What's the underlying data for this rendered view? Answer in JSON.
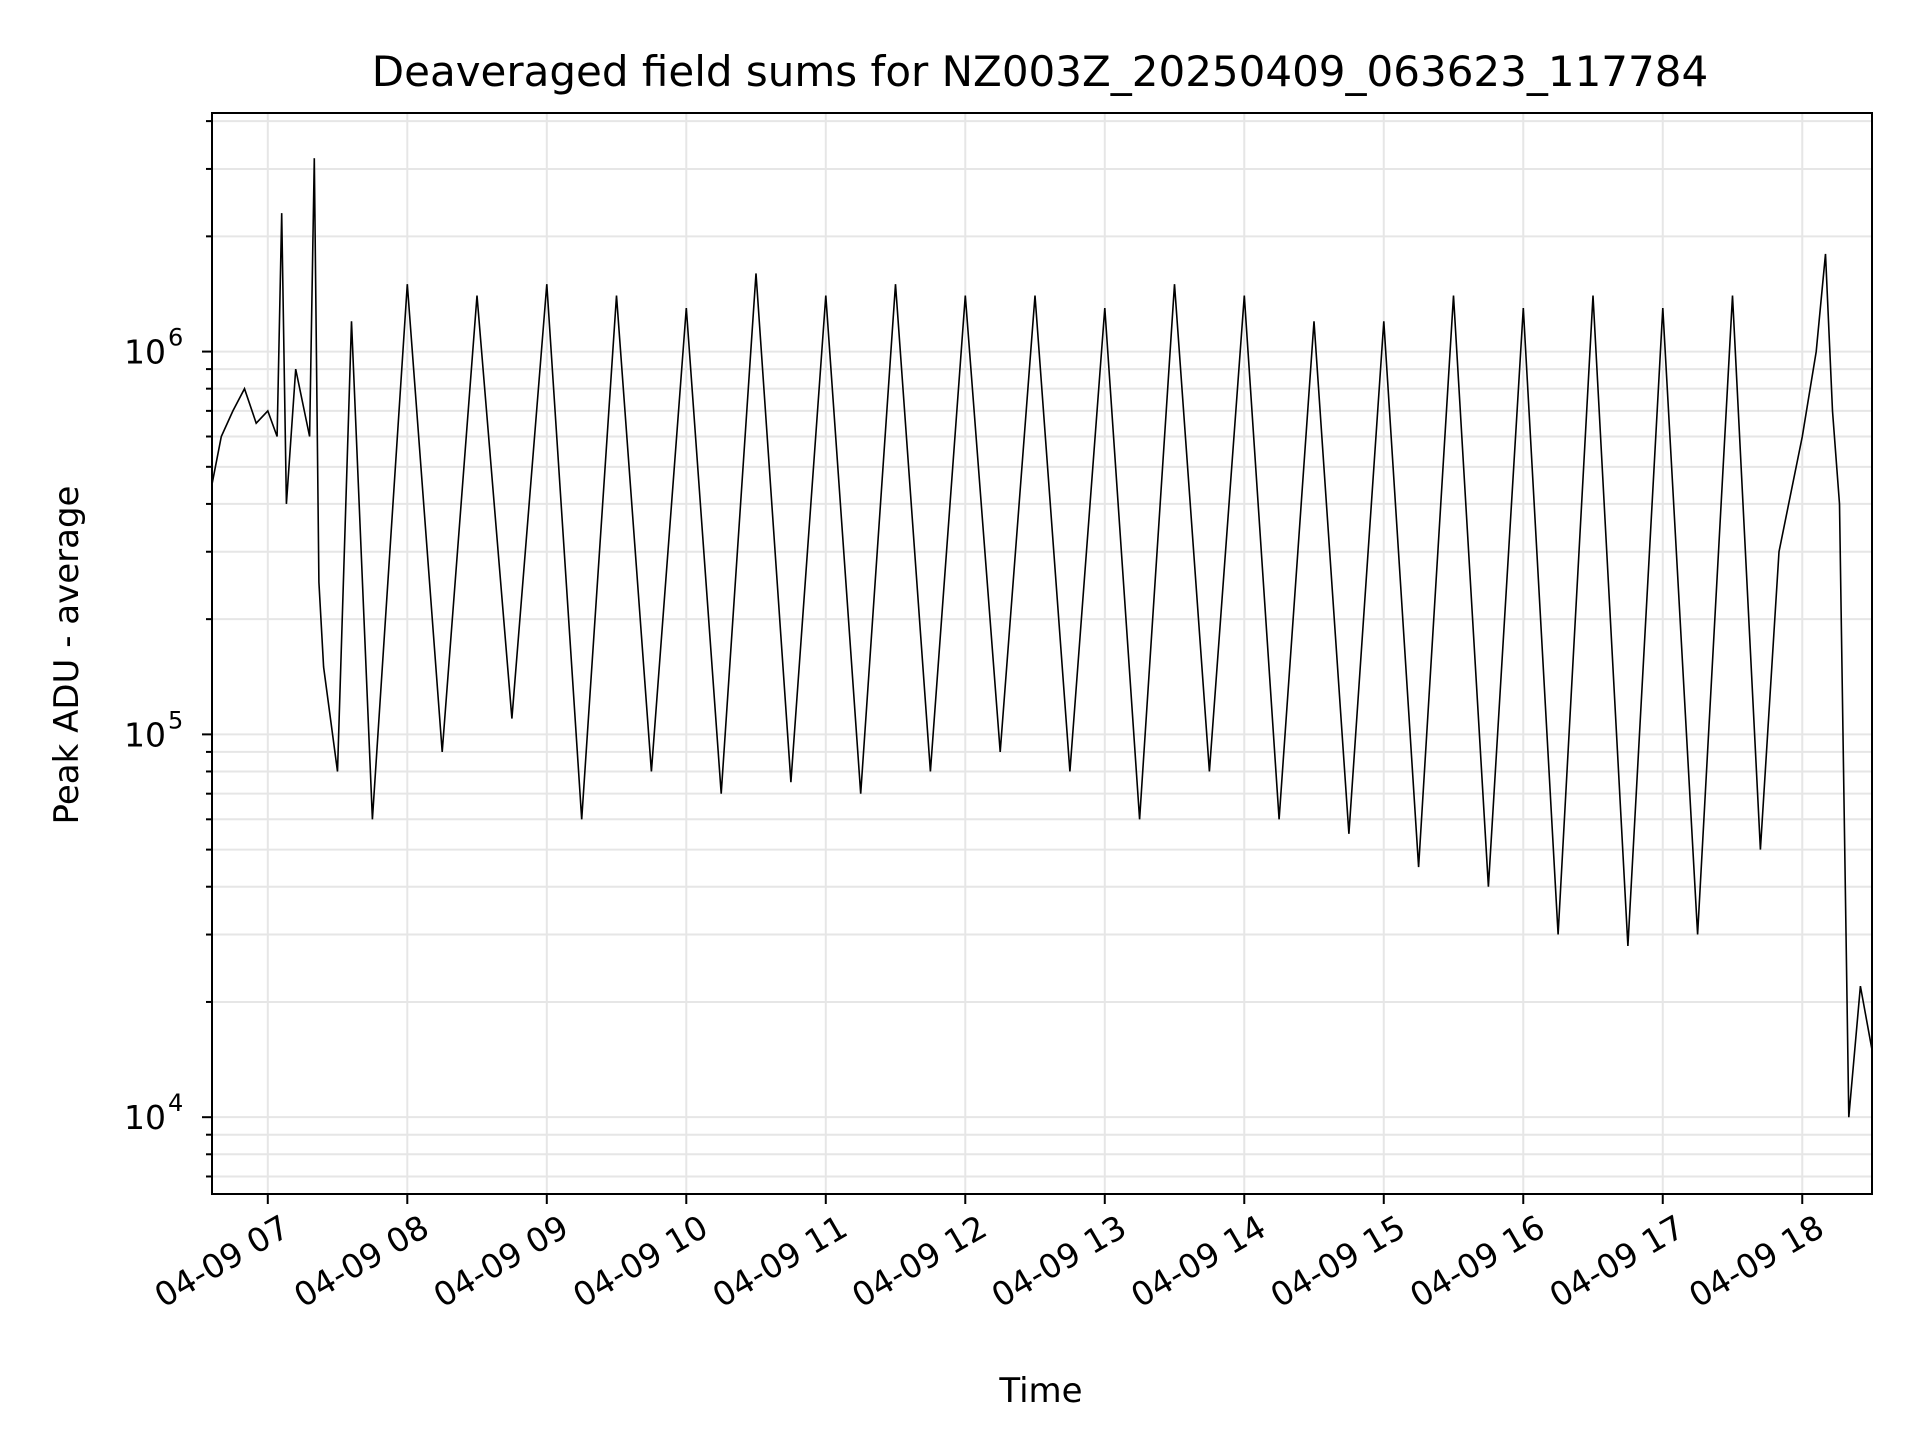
{
  "chart_data": {
    "type": "line",
    "title": "Deaveraged field sums for NZ003Z_20250409_063623_117784",
    "xlabel": "Time",
    "ylabel": "Peak ADU - average",
    "y_scale": "log",
    "ylim": [
      6300,
      4200000
    ],
    "xlim": [
      "2025-04-09 06:36",
      "2025-04-09 18:30"
    ],
    "grid": true,
    "line_color": "#000000",
    "x_ticks": [
      {
        "x": "2025-04-09 07:00",
        "label": "04-09 07"
      },
      {
        "x": "2025-04-09 08:00",
        "label": "04-09 08"
      },
      {
        "x": "2025-04-09 09:00",
        "label": "04-09 09"
      },
      {
        "x": "2025-04-09 10:00",
        "label": "04-09 10"
      },
      {
        "x": "2025-04-09 11:00",
        "label": "04-09 11"
      },
      {
        "x": "2025-04-09 12:00",
        "label": "04-09 12"
      },
      {
        "x": "2025-04-09 13:00",
        "label": "04-09 13"
      },
      {
        "x": "2025-04-09 14:00",
        "label": "04-09 14"
      },
      {
        "x": "2025-04-09 15:00",
        "label": "04-09 15"
      },
      {
        "x": "2025-04-09 16:00",
        "label": "04-09 16"
      },
      {
        "x": "2025-04-09 17:00",
        "label": "04-09 17"
      },
      {
        "x": "2025-04-09 18:00",
        "label": "04-09 18"
      }
    ],
    "y_ticks": [
      {
        "y": 10000,
        "base": "10",
        "exp": "4"
      },
      {
        "y": 100000,
        "base": "10",
        "exp": "5"
      },
      {
        "y": 1000000,
        "base": "10",
        "exp": "6"
      }
    ],
    "series": [
      {
        "x": [
          "2025-04-09 06:36",
          "2025-04-09 06:40",
          "2025-04-09 06:45",
          "2025-04-09 06:50",
          "2025-04-09 06:55",
          "2025-04-09 07:00",
          "2025-04-09 07:04",
          "2025-04-09 07:06",
          "2025-04-09 07:08",
          "2025-04-09 07:12",
          "2025-04-09 07:18",
          "2025-04-09 07:20",
          "2025-04-09 07:22",
          "2025-04-09 07:24",
          "2025-04-09 07:30",
          "2025-04-09 07:36",
          "2025-04-09 07:45",
          "2025-04-09 08:00",
          "2025-04-09 08:15",
          "2025-04-09 08:30",
          "2025-04-09 08:45",
          "2025-04-09 09:00",
          "2025-04-09 09:15",
          "2025-04-09 09:30",
          "2025-04-09 09:45",
          "2025-04-09 10:00",
          "2025-04-09 10:15",
          "2025-04-09 10:30",
          "2025-04-09 10:45",
          "2025-04-09 11:00",
          "2025-04-09 11:15",
          "2025-04-09 11:30",
          "2025-04-09 11:45",
          "2025-04-09 12:00",
          "2025-04-09 12:15",
          "2025-04-09 12:30",
          "2025-04-09 12:45",
          "2025-04-09 13:00",
          "2025-04-09 13:15",
          "2025-04-09 13:30",
          "2025-04-09 13:45",
          "2025-04-09 14:00",
          "2025-04-09 14:15",
          "2025-04-09 14:30",
          "2025-04-09 14:45",
          "2025-04-09 15:00",
          "2025-04-09 15:15",
          "2025-04-09 15:30",
          "2025-04-09 15:45",
          "2025-04-09 16:00",
          "2025-04-09 16:15",
          "2025-04-09 16:30",
          "2025-04-09 16:45",
          "2025-04-09 17:00",
          "2025-04-09 17:15",
          "2025-04-09 17:30",
          "2025-04-09 17:42",
          "2025-04-09 17:50",
          "2025-04-09 18:00",
          "2025-04-09 18:06",
          "2025-04-09 18:10",
          "2025-04-09 18:13",
          "2025-04-09 18:16",
          "2025-04-09 18:20",
          "2025-04-09 18:25",
          "2025-04-09 18:30"
        ],
        "y": [
          450000,
          600000,
          700000,
          800000,
          650000,
          700000,
          600000,
          2300000,
          400000,
          900000,
          600000,
          3200000,
          250000,
          150000,
          80000,
          1200000,
          60000,
          1500000,
          90000,
          1400000,
          110000,
          1500000,
          60000,
          1400000,
          80000,
          1300000,
          70000,
          1600000,
          75000,
          1400000,
          70000,
          1500000,
          80000,
          1400000,
          90000,
          1400000,
          80000,
          1300000,
          60000,
          1500000,
          80000,
          1400000,
          60000,
          1200000,
          55000,
          1200000,
          45000,
          1400000,
          40000,
          1300000,
          30000,
          1400000,
          28000,
          1300000,
          30000,
          1400000,
          50000,
          300000,
          600000,
          1000000,
          1800000,
          700000,
          400000,
          10000,
          22000,
          15000
        ]
      }
    ]
  }
}
